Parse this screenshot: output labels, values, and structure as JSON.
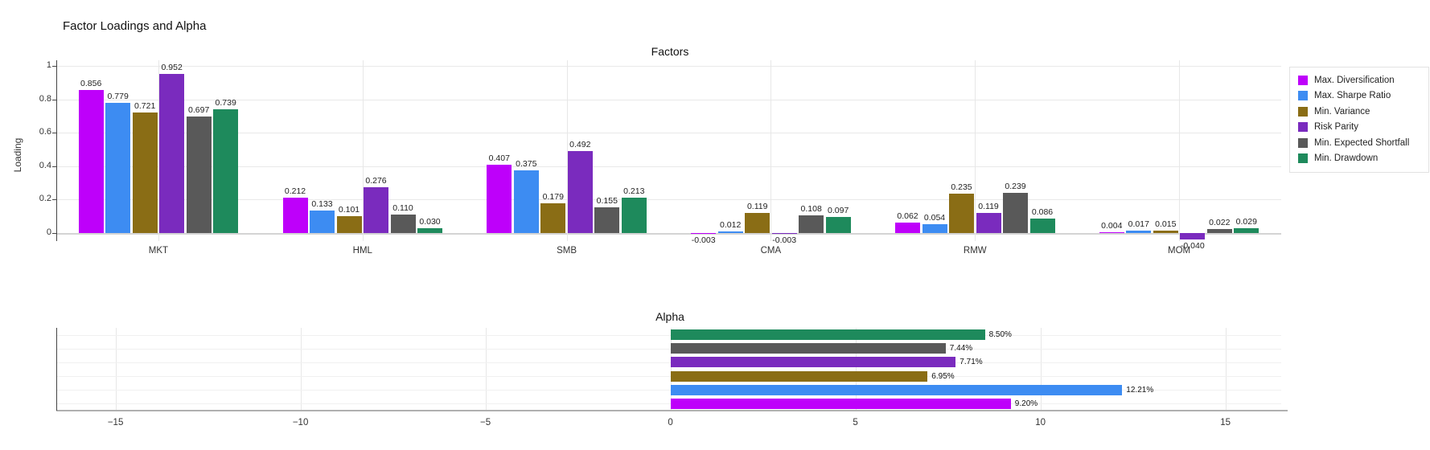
{
  "title": "Factor Loadings and Alpha",
  "colors": {
    "max_diversification": "#BE00FA",
    "max_sharpe_ratio": "#3D8CF2",
    "min_variance": "#8A6D15",
    "risk_parity": "#7A2BBE",
    "min_expected_shortfall": "#595959",
    "min_drawdown": "#1E8A5C",
    "grid": "#E8E8E8",
    "zero_line": "#D4D4D4",
    "axis": "#444444"
  },
  "chart_data": [
    {
      "type": "bar",
      "title": "Factors",
      "xlabel": "",
      "ylabel": "Loading",
      "categories": [
        "MKT",
        "HML",
        "SMB",
        "CMA",
        "RMW",
        "MOM"
      ],
      "series": [
        {
          "name": "Max. Diversification",
          "color": "#BE00FA",
          "values": [
            0.856,
            0.212,
            0.407,
            -0.003,
            0.062,
            0.004
          ]
        },
        {
          "name": "Max. Sharpe Ratio",
          "color": "#3D8CF2",
          "values": [
            0.779,
            0.133,
            0.375,
            0.012,
            0.054,
            0.017
          ]
        },
        {
          "name": "Min. Variance",
          "color": "#8A6D15",
          "values": [
            0.721,
            0.101,
            0.179,
            0.119,
            0.235,
            0.015
          ]
        },
        {
          "name": "Risk Parity",
          "color": "#7A2BBE",
          "values": [
            0.952,
            0.276,
            0.492,
            -0.003,
            0.119,
            -0.04
          ]
        },
        {
          "name": "Min. Expected Shortfall",
          "color": "#595959",
          "values": [
            0.697,
            0.11,
            0.155,
            0.108,
            0.239,
            0.022
          ]
        },
        {
          "name": "Min. Drawdown",
          "color": "#1E8A5C",
          "values": [
            0.739,
            0.03,
            0.213,
            0.097,
            0.086,
            0.029
          ]
        }
      ],
      "yticks": [
        0,
        0.2,
        0.4,
        0.6,
        0.8,
        1
      ],
      "ytick_labels": [
        "0",
        "0.2",
        "0.4",
        "0.6",
        "0.8",
        "1"
      ],
      "ylim": [
        -0.05,
        1.03
      ],
      "grid": true,
      "legend_position": "right",
      "value_label_decimals": 3
    },
    {
      "type": "bar-horizontal",
      "title": "Alpha",
      "xlabel": "",
      "ylabel": "",
      "bars": [
        {
          "name": "Min. Drawdown",
          "color": "#1E8A5C",
          "value": 8.5,
          "label": "8.50%"
        },
        {
          "name": "Min. Expected Shortfall",
          "color": "#595959",
          "value": 7.44,
          "label": "7.44%"
        },
        {
          "name": "Risk Parity",
          "color": "#7A2BBE",
          "value": 7.71,
          "label": "7.71%"
        },
        {
          "name": "Min. Variance",
          "color": "#8A6D15",
          "value": 6.95,
          "label": "6.95%"
        },
        {
          "name": "Max. Sharpe Ratio",
          "color": "#3D8CF2",
          "value": 12.21,
          "label": "12.21%"
        },
        {
          "name": "Max. Diversification",
          "color": "#BE00FA",
          "value": 9.2,
          "label": "9.20%"
        }
      ],
      "xticks": [
        -15,
        -10,
        -5,
        0,
        5,
        10,
        15
      ],
      "xtick_labels": [
        "−15",
        "−10",
        "−5",
        "0",
        "5",
        "10",
        "15"
      ],
      "xlim": [
        -16.6,
        16.5
      ],
      "grid": true
    }
  ]
}
